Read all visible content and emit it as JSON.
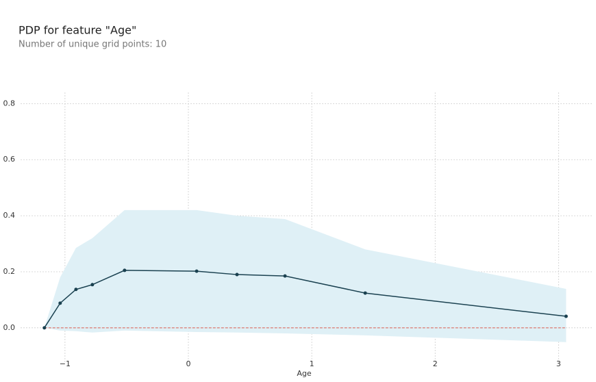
{
  "chart_data": {
    "type": "line",
    "title": "PDP for feature \"Age\"",
    "subtitle": "Number of unique grid points: 10",
    "x_label": "Age",
    "x": [
      -1.167,
      -1.039,
      -0.911,
      -0.778,
      -0.517,
      0.067,
      0.394,
      0.783,
      1.433,
      3.061
    ],
    "values": [
      0,
      0.088,
      0.137,
      0.154,
      0.205,
      0.202,
      0.19,
      0.185,
      0.124,
      0.041
    ],
    "upper": [
      0,
      0.18,
      0.285,
      0.32,
      0.42,
      0.42,
      0.4,
      0.388,
      0.28,
      0.139
    ],
    "lower": [
      0,
      -0.01,
      -0.012,
      -0.017,
      -0.01,
      -0.015,
      -0.017,
      -0.02,
      -0.027,
      -0.051
    ],
    "color": "#1a4150",
    "band_color": "#dff0f6",
    "reference_line": 0,
    "reference_color": "#d9594c",
    "xlim": [
      -1.36,
      3.27
    ],
    "ylim": [
      -0.125,
      0.84
    ],
    "xticks": [
      {
        "value": -1,
        "label": "−1"
      },
      0,
      1,
      2,
      3
    ],
    "yticks": [
      {
        "value": 0,
        "label": "0.0"
      },
      0.2,
      0.4,
      0.6,
      0.8
    ],
    "grid": true
  }
}
